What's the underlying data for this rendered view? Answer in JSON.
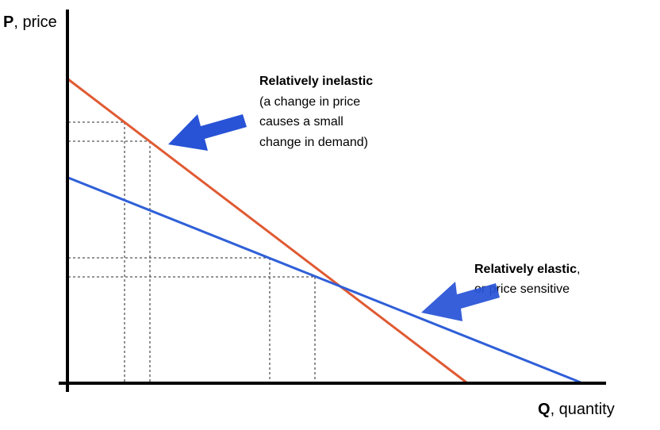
{
  "axes": {
    "y_label_bold": "P",
    "y_label_rest": ", price",
    "x_label_bold": "Q",
    "x_label_rest": ", quantity"
  },
  "inelastic": {
    "title": "Relatively inelastic",
    "lines": [
      "(a change in price",
      "causes a small",
      "change in demand)"
    ],
    "color": "#e05a33"
  },
  "elastic": {
    "title": "Relatively elastic",
    "title_suffix": ",",
    "line2": "or price sensitive",
    "color": "#2f5fd8"
  },
  "colors": {
    "axis": "#000000",
    "arrow": "#2853d6",
    "guide": "#555555"
  },
  "icons": {
    "inelastic_pointer": "arrow-pointer-icon",
    "elastic_pointer": "arrow-pointer-icon"
  }
}
